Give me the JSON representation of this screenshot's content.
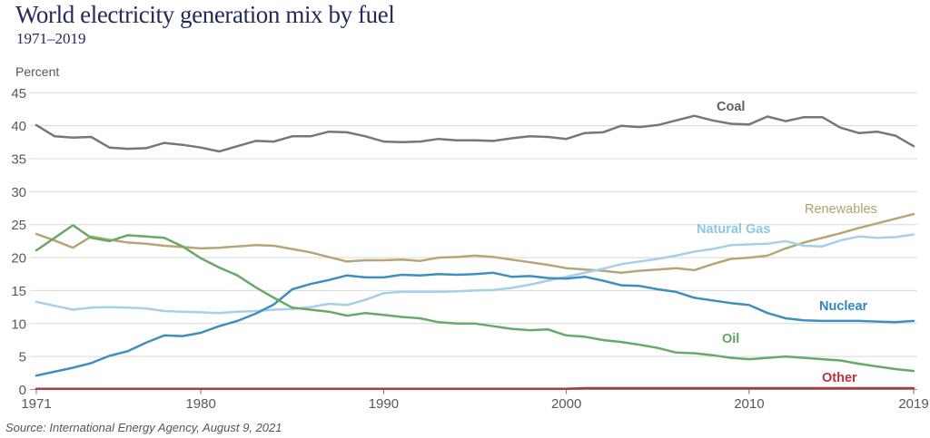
{
  "page": {
    "title": "World electricity generation mix by fuel",
    "subtitle": "1971–2019",
    "source": "Source: International Energy Agency, August 9, 2021"
  },
  "chart_data": {
    "type": "line",
    "title": "World electricity generation mix by fuel",
    "subtitle": "1971–2019",
    "ylabel": "Percent",
    "xlabel": "",
    "ylim": [
      0,
      45
    ],
    "grid": "horizontal",
    "legend_position": "inline-labels-right",
    "y_ticks": [
      0,
      5,
      10,
      15,
      20,
      25,
      30,
      35,
      40,
      45
    ],
    "x_ticks": [
      1971,
      1980,
      1990,
      2000,
      2010,
      2019
    ],
    "years": [
      1971,
      1972,
      1973,
      1974,
      1975,
      1976,
      1977,
      1978,
      1979,
      1980,
      1981,
      1982,
      1983,
      1984,
      1985,
      1986,
      1987,
      1988,
      1989,
      1990,
      1991,
      1992,
      1993,
      1994,
      1995,
      1996,
      1997,
      1998,
      1999,
      2000,
      2001,
      2002,
      2003,
      2004,
      2005,
      2006,
      2007,
      2008,
      2009,
      2010,
      2011,
      2012,
      2013,
      2014,
      2015,
      2016,
      2017,
      2018,
      2019
    ],
    "series": [
      {
        "id": "coal",
        "name": "Coal",
        "color": "#76777b",
        "label_color": "#5f6064",
        "bold_label": true,
        "values": [
          40.1,
          38.4,
          38.2,
          38.3,
          36.7,
          36.5,
          36.6,
          37.4,
          37.1,
          36.7,
          36.1,
          36.9,
          37.7,
          37.6,
          38.4,
          38.4,
          39.1,
          39.0,
          38.4,
          37.6,
          37.5,
          37.6,
          38.0,
          37.8,
          37.8,
          37.7,
          38.1,
          38.4,
          38.3,
          38.0,
          38.9,
          39.0,
          40.0,
          39.8,
          40.1,
          40.8,
          41.5,
          40.8,
          40.3,
          40.2,
          41.4,
          40.7,
          41.3,
          41.3,
          39.7,
          38.9,
          39.1,
          38.5,
          36.9
        ]
      },
      {
        "id": "renewables",
        "name": "Renewables",
        "color": "#b5a577",
        "label_color": "#b2a26b",
        "bold_label": false,
        "values": [
          23.6,
          22.6,
          21.5,
          23.2,
          22.7,
          22.3,
          22.1,
          21.8,
          21.6,
          21.4,
          21.5,
          21.7,
          21.9,
          21.8,
          21.3,
          20.8,
          20.1,
          19.4,
          19.6,
          19.6,
          19.7,
          19.5,
          20.0,
          20.1,
          20.3,
          20.1,
          19.7,
          19.3,
          18.9,
          18.4,
          18.2,
          18.0,
          17.7,
          18.0,
          18.2,
          18.4,
          18.1,
          19.0,
          19.8,
          20.0,
          20.3,
          21.4,
          22.3,
          23.0,
          23.7,
          24.5,
          25.2,
          25.9,
          26.6
        ]
      },
      {
        "id": "natural_gas",
        "name": "Natural Gas",
        "color": "#a6d0ea",
        "label_color": "#8dc6e8",
        "bold_label": true,
        "values": [
          13.3,
          12.7,
          12.1,
          12.4,
          12.5,
          12.4,
          12.3,
          11.9,
          11.8,
          11.7,
          11.6,
          11.8,
          11.9,
          12.1,
          12.2,
          12.5,
          13.0,
          12.8,
          13.6,
          14.6,
          14.8,
          14.8,
          14.8,
          14.9,
          15.0,
          15.1,
          15.4,
          15.9,
          16.5,
          17.1,
          17.7,
          18.3,
          19.0,
          19.4,
          19.8,
          20.3,
          20.9,
          21.3,
          21.9,
          22.0,
          22.1,
          22.5,
          21.8,
          21.7,
          22.6,
          23.2,
          23.0,
          23.1,
          23.5
        ]
      },
      {
        "id": "nuclear",
        "name": "Nuclear",
        "color": "#3e8ec0",
        "label_color": "#3187bb",
        "bold_label": true,
        "values": [
          2.1,
          2.7,
          3.3,
          4.0,
          5.1,
          5.8,
          7.1,
          8.2,
          8.1,
          8.6,
          9.6,
          10.4,
          11.5,
          12.9,
          15.2,
          16.0,
          16.6,
          17.3,
          17.0,
          17.0,
          17.4,
          17.3,
          17.5,
          17.4,
          17.5,
          17.7,
          17.1,
          17.2,
          16.9,
          16.8,
          17.1,
          16.5,
          15.8,
          15.7,
          15.2,
          14.8,
          13.9,
          13.5,
          13.1,
          12.8,
          11.6,
          10.8,
          10.5,
          10.4,
          10.4,
          10.4,
          10.3,
          10.2,
          10.4
        ]
      },
      {
        "id": "oil",
        "name": "Oil",
        "color": "#69a967",
        "label_color": "#60a460",
        "bold_label": true,
        "values": [
          21.1,
          23.0,
          24.9,
          23.0,
          22.5,
          23.4,
          23.2,
          23.0,
          21.7,
          19.9,
          18.5,
          17.3,
          15.5,
          13.9,
          12.4,
          12.1,
          11.8,
          11.2,
          11.6,
          11.3,
          11.0,
          10.8,
          10.2,
          10.0,
          10.0,
          9.6,
          9.2,
          9.0,
          9.1,
          8.2,
          8.0,
          7.5,
          7.2,
          6.8,
          6.3,
          5.6,
          5.5,
          5.2,
          4.8,
          4.6,
          4.8,
          5.0,
          4.8,
          4.6,
          4.4,
          3.9,
          3.5,
          3.1,
          2.8
        ]
      },
      {
        "id": "other",
        "name": "Other",
        "color": "#a83c40",
        "label_color": "#c03038",
        "bold_label": true,
        "values": [
          0.1,
          0.1,
          0.1,
          0.1,
          0.1,
          0.1,
          0.1,
          0.1,
          0.1,
          0.1,
          0.1,
          0.1,
          0.1,
          0.1,
          0.1,
          0.1,
          0.1,
          0.1,
          0.1,
          0.1,
          0.1,
          0.1,
          0.1,
          0.1,
          0.1,
          0.1,
          0.1,
          0.1,
          0.1,
          0.1,
          0.2,
          0.2,
          0.2,
          0.2,
          0.2,
          0.2,
          0.2,
          0.2,
          0.2,
          0.2,
          0.2,
          0.2,
          0.2,
          0.2,
          0.2,
          0.2,
          0.2,
          0.2,
          0.2
        ]
      }
    ]
  }
}
